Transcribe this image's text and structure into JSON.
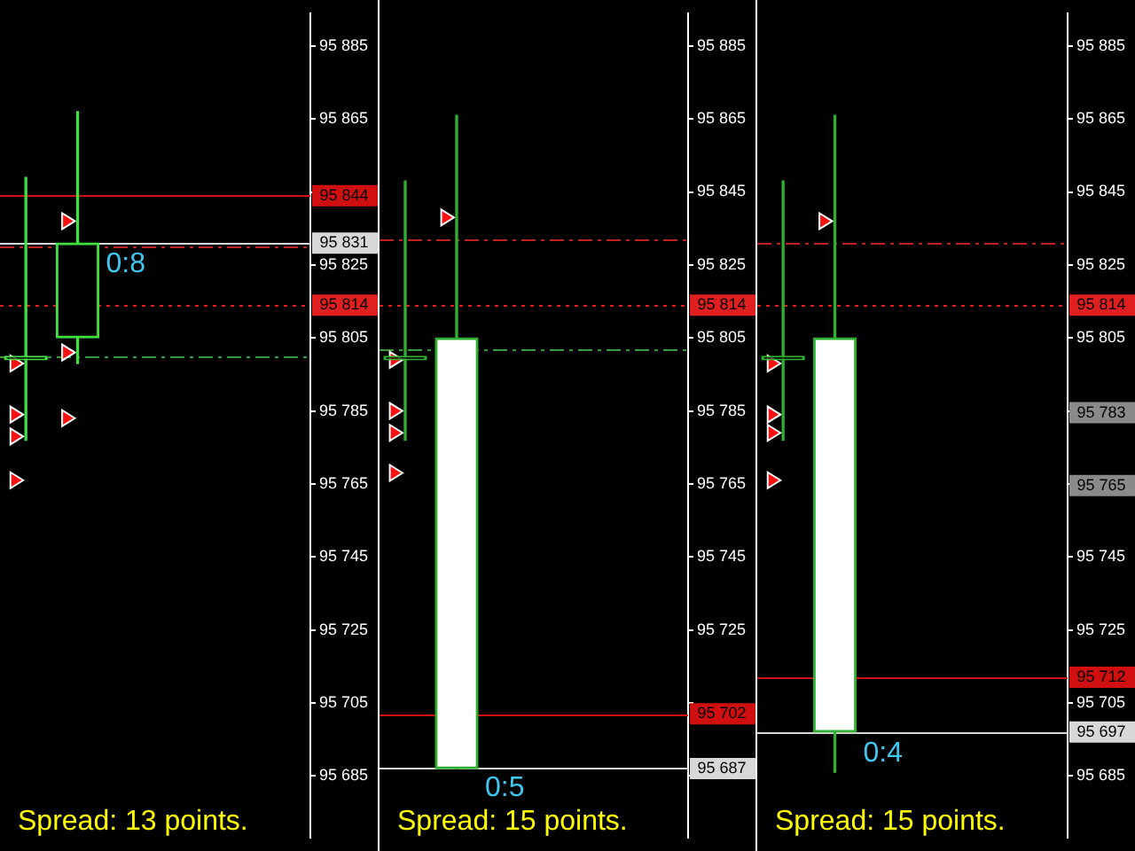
{
  "chart_data": [
    {
      "type": "candlestick",
      "categories": [
        null,
        null,
        null,
        null,
        null,
        null
      ],
      "ylim": [
        95668,
        95894
      ],
      "tick_labels": "y",
      "grid": false,
      "legend": false,
      "yticks": [
        {
          "value": 95685,
          "label": "95 685"
        },
        {
          "value": 95705,
          "label": "95 705"
        },
        {
          "value": 95725,
          "label": "95 725"
        },
        {
          "value": 95745,
          "label": "95 745"
        },
        {
          "value": 95765,
          "label": "95 765"
        },
        {
          "value": 95785,
          "label": "95 785"
        },
        {
          "value": 95805,
          "label": "95 805"
        },
        {
          "value": 95825,
          "label": "95 825"
        },
        {
          "value": 95845,
          "label": null
        },
        {
          "value": 95865,
          "label": "95 865"
        },
        {
          "value": 95885,
          "label": "95 885"
        }
      ],
      "series": [
        {
          "type": "candlestick",
          "color": "#40e040",
          "ohlc": [
            [
              95799,
              95849,
              95777,
              95799
            ],
            [
              95805,
              95867,
              95798,
              95831
            ],
            null,
            null,
            null,
            null
          ]
        },
        {
          "type": "scatter",
          "marker": "triangle",
          "color": "#ff1010",
          "values": [
            95798,
            95837,
            null,
            null,
            null,
            null
          ]
        },
        {
          "type": "scatter",
          "marker": "triangle",
          "color": "#ff1010",
          "values": [
            95784,
            95801,
            null,
            null,
            null,
            null
          ]
        },
        {
          "type": "scatter",
          "marker": "triangle",
          "color": "#ff1010",
          "values": [
            95778,
            95783,
            null,
            null,
            null,
            null
          ]
        },
        {
          "type": "scatter",
          "marker": "triangle",
          "color": "#ff1010",
          "values": [
            95766,
            null,
            null,
            null,
            null,
            null
          ]
        }
      ],
      "ref_lines": [
        {
          "axis": "y",
          "value": 95844,
          "label": "95 844",
          "color": "#d01010",
          "line_style": "solid"
        },
        {
          "axis": "y",
          "value": 95831,
          "label": "95 831",
          "color": "#d8d8d8",
          "line_style": "solid"
        },
        {
          "axis": "y",
          "value": 95814,
          "label": "95 814",
          "color": "#e02020",
          "line_style": "dotted"
        },
        {
          "axis": "y",
          "value": 95830,
          "color": "#c02020",
          "line_style": "dashed"
        },
        {
          "axis": "y",
          "value": 95800,
          "color": "#3a9a3a",
          "line_style": "dashed"
        }
      ],
      "annotations": [
        "0:8",
        "Spread: 13 points."
      ]
    },
    {
      "type": "candlestick",
      "categories": [
        null,
        null,
        null,
        null,
        null,
        null
      ],
      "ylim": [
        95668,
        95894
      ],
      "tick_labels": "y",
      "grid": false,
      "legend": false,
      "yticks": [
        {
          "value": 95685,
          "label": null
        },
        {
          "value": 95705,
          "label": null
        },
        {
          "value": 95725,
          "label": "95 725"
        },
        {
          "value": 95745,
          "label": "95 745"
        },
        {
          "value": 95765,
          "label": "95 765"
        },
        {
          "value": 95785,
          "label": "95 785"
        },
        {
          "value": 95805,
          "label": "95 805"
        },
        {
          "value": 95825,
          "label": "95 825"
        },
        {
          "value": 95845,
          "label": "95 845"
        },
        {
          "value": 95865,
          "label": "95 865"
        },
        {
          "value": 95885,
          "label": "95 885"
        }
      ],
      "series": [
        {
          "type": "candlestick",
          "color": "#30b030",
          "ohlc": [
            [
              95799,
              95848,
              95777,
              95799
            ],
            [
              95805,
              95866,
              95687,
              95687
            ],
            null,
            null,
            null,
            null
          ]
        },
        {
          "type": "scatter",
          "marker": "triangle",
          "color": "#ff1010",
          "values": [
            95799,
            95838,
            null,
            null,
            null,
            null
          ]
        },
        {
          "type": "scatter",
          "marker": "triangle",
          "color": "#ff1010",
          "values": [
            95785,
            null,
            null,
            null,
            null,
            null
          ]
        },
        {
          "type": "scatter",
          "marker": "triangle",
          "color": "#ff1010",
          "values": [
            95779,
            null,
            null,
            null,
            null,
            null
          ]
        },
        {
          "type": "scatter",
          "marker": "triangle",
          "color": "#ff1010",
          "values": [
            95768,
            null,
            null,
            null,
            null,
            null
          ]
        }
      ],
      "ref_lines": [
        {
          "axis": "y",
          "value": 95832,
          "color": "#c02020",
          "line_style": "dashed"
        },
        {
          "axis": "y",
          "value": 95814,
          "label": "95 814",
          "color": "#e02020",
          "line_style": "dotted"
        },
        {
          "axis": "y",
          "value": 95802,
          "color": "#3a9a3a",
          "line_style": "dashed"
        },
        {
          "axis": "y",
          "value": 95702,
          "label": "95 702",
          "color": "#d01010",
          "line_style": "solid"
        },
        {
          "axis": "y",
          "value": 95687,
          "label": "95 687",
          "color": "#d8d8d8",
          "line_style": "solid"
        }
      ],
      "annotations": [
        "0:5",
        "Spread: 15 points."
      ]
    },
    {
      "type": "candlestick",
      "categories": [
        null,
        null,
        null,
        null,
        null,
        null
      ],
      "ylim": [
        95668,
        95894
      ],
      "tick_labels": "y",
      "grid": false,
      "legend": false,
      "yticks": [
        {
          "value": 95685,
          "label": "95 685"
        },
        {
          "value": 95705,
          "label": "95 705"
        },
        {
          "value": 95725,
          "label": "95 725"
        },
        {
          "value": 95745,
          "label": "95 745"
        },
        {
          "value": 95765,
          "label": null
        },
        {
          "value": 95785,
          "label": null
        },
        {
          "value": 95805,
          "label": "95 805"
        },
        {
          "value": 95825,
          "label": "95 825"
        },
        {
          "value": 95845,
          "label": "95 845"
        },
        {
          "value": 95865,
          "label": "95 865"
        },
        {
          "value": 95885,
          "label": "95 885"
        }
      ],
      "series": [
        {
          "type": "candlestick",
          "color": "#30b030",
          "ohlc": [
            [
              95799,
              95848,
              95777,
              95799
            ],
            [
              95805,
              95866,
              95686,
              95697
            ],
            null,
            null,
            null,
            null
          ]
        },
        {
          "type": "scatter",
          "marker": "triangle",
          "color": "#ff1010",
          "values": [
            95798,
            95837,
            null,
            null,
            null,
            null
          ]
        },
        {
          "type": "scatter",
          "marker": "triangle",
          "color": "#ff1010",
          "values": [
            95784,
            null,
            null,
            null,
            null,
            null
          ]
        },
        {
          "type": "scatter",
          "marker": "triangle",
          "color": "#ff1010",
          "values": [
            95779,
            null,
            null,
            null,
            null,
            null
          ]
        },
        {
          "type": "scatter",
          "marker": "triangle",
          "color": "#ff1010",
          "values": [
            95766,
            null,
            null,
            null,
            null,
            null
          ]
        }
      ],
      "ref_lines": [
        {
          "axis": "y",
          "value": 95831,
          "color": "#c02020",
          "line_style": "dashed"
        },
        {
          "axis": "y",
          "value": 95814,
          "label": "95 814",
          "color": "#e02020",
          "line_style": "dotted"
        },
        {
          "axis": "y",
          "value": 95712,
          "label": "95 712",
          "color": "#d01010",
          "line_style": "solid"
        },
        {
          "axis": "y",
          "value": 95697,
          "label": "95 697",
          "color": "#d8d8d8",
          "line_style": "solid"
        }
      ],
      "annotations": [
        "0:4",
        "Spread: 15 points.",
        "95 783",
        "95 765"
      ]
    }
  ]
}
